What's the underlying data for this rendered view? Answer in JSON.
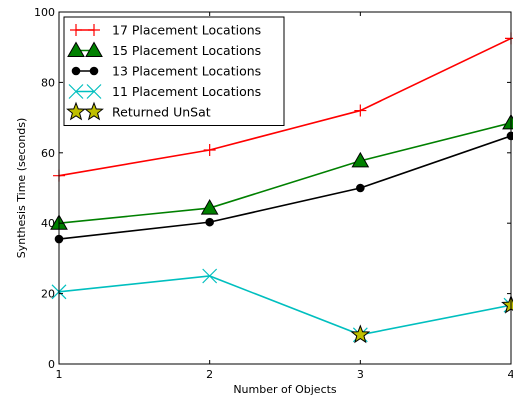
{
  "chart_data": {
    "type": "line",
    "title": "",
    "xlabel": "Number of Objects",
    "ylabel": "Synthesis Time (seconds)",
    "xlim": [
      1,
      4
    ],
    "ylim": [
      0,
      100
    ],
    "x_ticks": [
      1,
      2,
      3,
      4
    ],
    "y_ticks": [
      0,
      20,
      40,
      60,
      80,
      100
    ],
    "grid": false,
    "legend_position": "top-left",
    "x": [
      1,
      2,
      3,
      4
    ],
    "series": [
      {
        "name": "17 Placement Locations",
        "values": [
          53.5,
          60.8,
          72.0,
          92.5
        ],
        "color": "#ff0000",
        "marker": "plus"
      },
      {
        "name": "15 Placement Locations",
        "values": [
          40.0,
          44.3,
          57.7,
          68.5
        ],
        "color": "#008000",
        "marker": "triangle"
      },
      {
        "name": "13 Placement Locations",
        "values": [
          35.5,
          40.3,
          50.0,
          64.8
        ],
        "color": "#000000",
        "marker": "circle"
      },
      {
        "name": "11 Placement Locations",
        "values": [
          20.5,
          25.0,
          8.3,
          16.7
        ],
        "color": "#00bfbf",
        "marker": "x"
      }
    ],
    "unsat_marker": {
      "name": "Returned UnSat",
      "color": "#bfbf00",
      "marker": "star",
      "points": [
        {
          "x": 3,
          "y": 8.3
        },
        {
          "x": 4,
          "y": 16.7
        }
      ]
    }
  }
}
